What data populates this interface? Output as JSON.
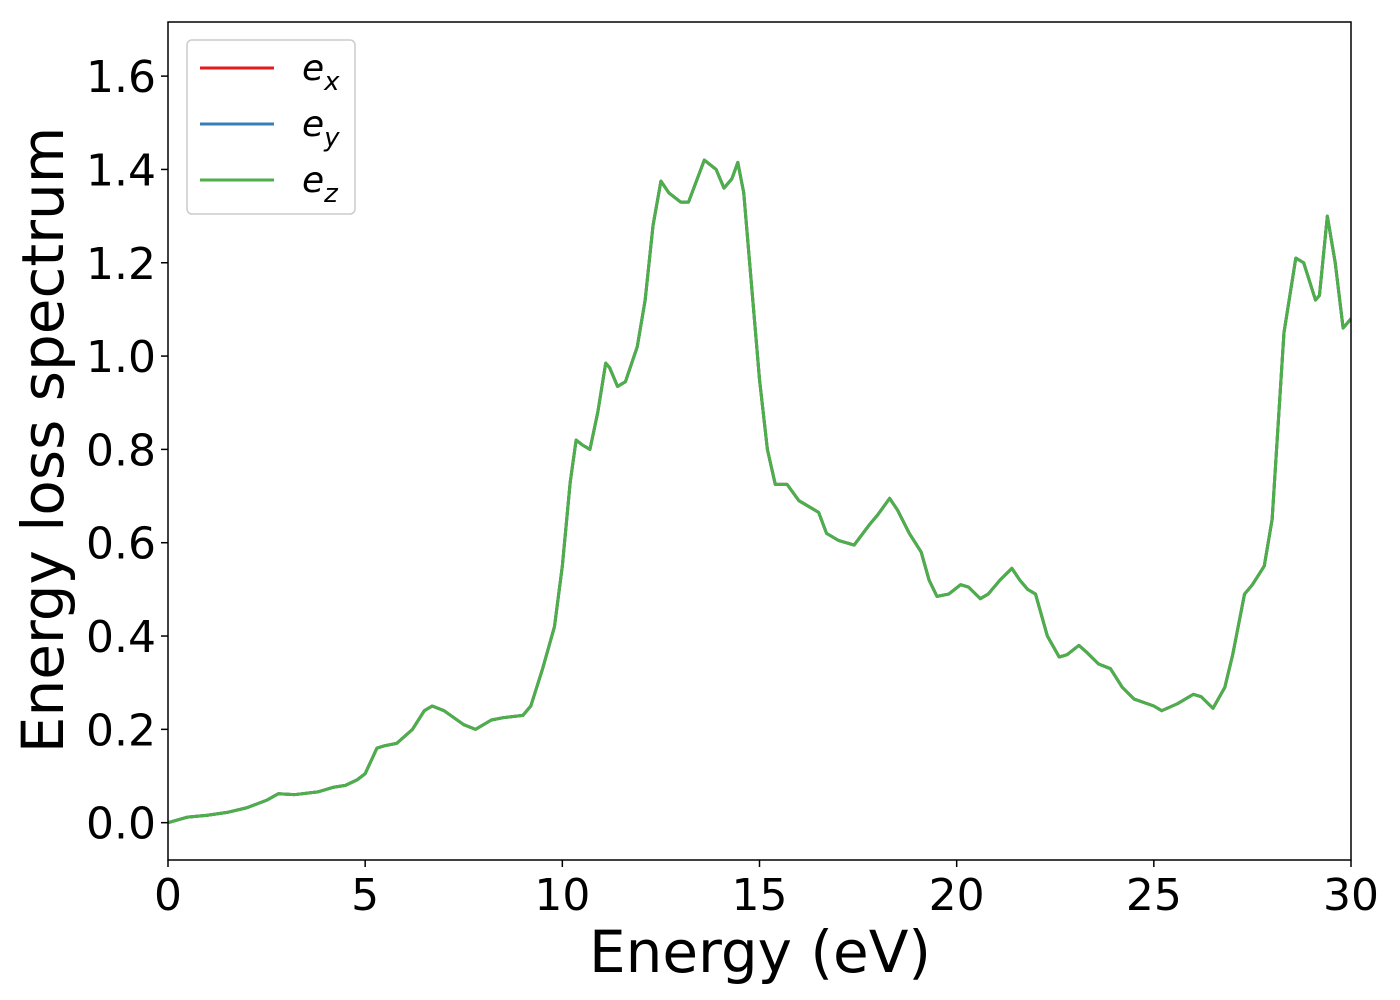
{
  "chart_data": {
    "type": "line",
    "xlabel": "Energy (eV)",
    "ylabel": "Energy loss spectrum",
    "x": [
      0,
      0.5,
      1.0,
      1.5,
      2.0,
      2.5,
      2.8,
      3.2,
      3.8,
      4.2,
      4.5,
      4.8,
      5.0,
      5.3,
      5.5,
      5.8,
      6.2,
      6.5,
      6.7,
      7.0,
      7.5,
      7.8,
      8.2,
      8.5,
      9.0,
      9.2,
      9.5,
      9.8,
      10.0,
      10.2,
      10.35,
      10.5,
      10.7,
      10.9,
      11.1,
      11.2,
      11.4,
      11.6,
      11.9,
      12.1,
      12.3,
      12.5,
      12.7,
      13.0,
      13.2,
      13.6,
      13.9,
      14.1,
      14.3,
      14.45,
      14.6,
      14.8,
      15.0,
      15.2,
      15.4,
      15.7,
      16.0,
      16.3,
      16.5,
      16.7,
      17.0,
      17.4,
      17.8,
      18.0,
      18.3,
      18.5,
      18.8,
      19.1,
      19.3,
      19.5,
      19.8,
      20.1,
      20.3,
      20.6,
      20.8,
      21.1,
      21.4,
      21.6,
      21.8,
      22.0,
      22.3,
      22.6,
      22.8,
      23.1,
      23.3,
      23.6,
      23.9,
      24.2,
      24.5,
      25.0,
      25.2,
      25.6,
      26.0,
      26.2,
      26.5,
      26.8,
      27.0,
      27.3,
      27.5,
      27.8,
      28.0,
      28.3,
      28.6,
      28.8,
      29.1,
      29.2,
      29.4,
      29.6,
      29.8,
      30.0
    ],
    "series": [
      {
        "name": "e_x",
        "color": "#e41a1c",
        "values": [
          0,
          0.012,
          0.016,
          0.022,
          0.032,
          0.048,
          0.062,
          0.06,
          0.066,
          0.076,
          0.08,
          0.092,
          0.105,
          0.16,
          0.165,
          0.17,
          0.2,
          0.24,
          0.25,
          0.24,
          0.21,
          0.2,
          0.22,
          0.225,
          0.23,
          0.25,
          0.33,
          0.42,
          0.55,
          0.73,
          0.82,
          0.81,
          0.8,
          0.88,
          0.985,
          0.975,
          0.935,
          0.945,
          1.02,
          1.12,
          1.28,
          1.375,
          1.35,
          1.33,
          1.33,
          1.42,
          1.4,
          1.36,
          1.38,
          1.415,
          1.35,
          1.15,
          0.95,
          0.8,
          0.725,
          0.725,
          0.69,
          0.675,
          0.665,
          0.62,
          0.605,
          0.595,
          0.64,
          0.66,
          0.695,
          0.67,
          0.62,
          0.58,
          0.52,
          0.485,
          0.49,
          0.51,
          0.505,
          0.48,
          0.49,
          0.52,
          0.545,
          0.52,
          0.5,
          0.49,
          0.4,
          0.355,
          0.36,
          0.38,
          0.365,
          0.34,
          0.33,
          0.29,
          0.265,
          0.25,
          0.24,
          0.255,
          0.275,
          0.27,
          0.245,
          0.29,
          0.36,
          0.49,
          0.51,
          0.55,
          0.65,
          1.05,
          1.21,
          1.2,
          1.12,
          1.13,
          1.3,
          1.2,
          1.06,
          1.08
        ]
      },
      {
        "name": "e_y",
        "color": "#377eb8",
        "values": [
          0,
          0.012,
          0.016,
          0.022,
          0.032,
          0.048,
          0.062,
          0.06,
          0.066,
          0.076,
          0.08,
          0.092,
          0.105,
          0.16,
          0.165,
          0.17,
          0.2,
          0.24,
          0.25,
          0.24,
          0.21,
          0.2,
          0.22,
          0.225,
          0.23,
          0.25,
          0.33,
          0.42,
          0.55,
          0.73,
          0.82,
          0.81,
          0.8,
          0.88,
          0.985,
          0.975,
          0.935,
          0.945,
          1.02,
          1.12,
          1.28,
          1.375,
          1.35,
          1.33,
          1.33,
          1.42,
          1.4,
          1.36,
          1.38,
          1.415,
          1.35,
          1.15,
          0.95,
          0.8,
          0.725,
          0.725,
          0.69,
          0.675,
          0.665,
          0.62,
          0.605,
          0.595,
          0.64,
          0.66,
          0.695,
          0.67,
          0.62,
          0.58,
          0.52,
          0.485,
          0.49,
          0.51,
          0.505,
          0.48,
          0.49,
          0.52,
          0.545,
          0.52,
          0.5,
          0.49,
          0.4,
          0.355,
          0.36,
          0.38,
          0.365,
          0.34,
          0.33,
          0.29,
          0.265,
          0.25,
          0.24,
          0.255,
          0.275,
          0.27,
          0.245,
          0.29,
          0.36,
          0.49,
          0.51,
          0.55,
          0.65,
          1.05,
          1.21,
          1.2,
          1.12,
          1.13,
          1.3,
          1.2,
          1.06,
          1.08
        ]
      },
      {
        "name": "e_z",
        "color": "#4daf4a",
        "values": [
          0,
          0.012,
          0.016,
          0.022,
          0.032,
          0.048,
          0.062,
          0.06,
          0.066,
          0.076,
          0.08,
          0.092,
          0.105,
          0.16,
          0.165,
          0.17,
          0.2,
          0.24,
          0.25,
          0.24,
          0.21,
          0.2,
          0.22,
          0.225,
          0.23,
          0.25,
          0.33,
          0.42,
          0.55,
          0.73,
          0.82,
          0.81,
          0.8,
          0.88,
          0.985,
          0.975,
          0.935,
          0.945,
          1.02,
          1.12,
          1.28,
          1.375,
          1.35,
          1.33,
          1.33,
          1.42,
          1.4,
          1.36,
          1.38,
          1.415,
          1.35,
          1.15,
          0.95,
          0.8,
          0.725,
          0.725,
          0.69,
          0.675,
          0.665,
          0.62,
          0.605,
          0.595,
          0.64,
          0.66,
          0.695,
          0.67,
          0.62,
          0.58,
          0.52,
          0.485,
          0.49,
          0.51,
          0.505,
          0.48,
          0.49,
          0.52,
          0.545,
          0.52,
          0.5,
          0.49,
          0.4,
          0.355,
          0.36,
          0.38,
          0.365,
          0.34,
          0.33,
          0.29,
          0.265,
          0.25,
          0.24,
          0.255,
          0.275,
          0.27,
          0.245,
          0.29,
          0.36,
          0.49,
          0.51,
          0.55,
          0.65,
          1.05,
          1.21,
          1.2,
          1.12,
          1.13,
          1.3,
          1.2,
          1.06,
          1.08
        ]
      }
    ],
    "xlim": [
      0,
      30
    ],
    "xticks": [
      0,
      5,
      10,
      15,
      20,
      25,
      30
    ],
    "ylim": [
      -0.08,
      1.716
    ],
    "yticks": [
      {
        "value": 0,
        "label": "0.0"
      },
      0.2,
      0.4,
      0.6,
      0.8,
      {
        "value": 1,
        "label": "1.0"
      },
      1.2,
      1.4,
      1.6
    ],
    "grid": false,
    "legend": "upper left"
  }
}
